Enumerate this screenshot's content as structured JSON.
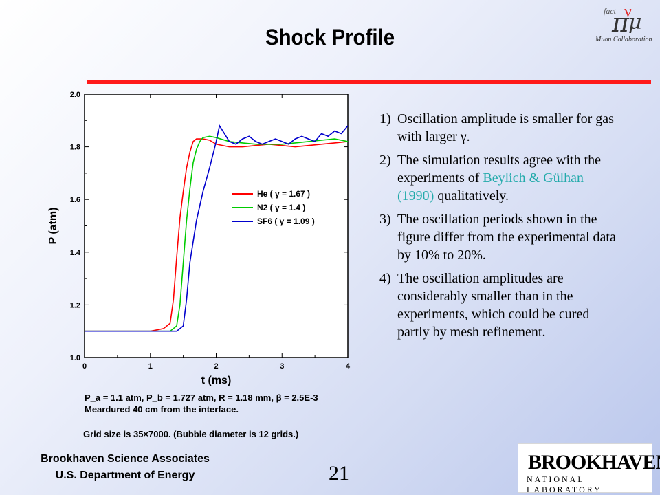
{
  "slide": {
    "title": "Shock Profile",
    "page_number": "21",
    "grid_note": "Grid size is 35×7000. (Bubble diameter is 12 grids.)",
    "footer_line1": "Brookhaven Science Associates",
    "footer_line2": "U.S. Department of Energy",
    "bnl_logo_top": "BROOKHAVEN",
    "bnl_logo_bottom": "NATIONAL LABORATORY",
    "logo_text_fact": "fact",
    "logo_text_collab": "Muon Collaboration"
  },
  "notes": [
    {
      "num": "1)",
      "text": "Oscillation amplitude is smaller for gas with larger γ."
    },
    {
      "num": "2)",
      "pre": "The simulation results agree with the experiments of ",
      "highlight": "Beylich & Gülhan (1990)",
      "post": " qualitatively."
    },
    {
      "num": "3)",
      "text": "The oscillation periods shown in the figure differ from the experimental data by 10% to 20%."
    },
    {
      "num": "4)",
      "text": "The oscillation amplitudes are considerably smaller than in the experiments, which could be cured partly by mesh refinement."
    }
  ],
  "chart_data": {
    "type": "line",
    "xlabel": "t (ms)",
    "ylabel": "P (atm)",
    "xlim": [
      0,
      4
    ],
    "ylim": [
      1.0,
      2.0
    ],
    "xticks": [
      "0",
      "1",
      "2",
      "3",
      "4"
    ],
    "yticks": [
      "1.0",
      "1.2",
      "1.4",
      "1.6",
      "1.8",
      "2.0"
    ],
    "legend_position": "right",
    "caption_line1": "P_a = 1.1 atm, P_b = 1.727 atm, R = 1.18 mm, β = 2.5E-3",
    "caption_line2": "Meardured 40 cm from the interface.",
    "series": [
      {
        "name": "He ( γ = 1.67 )",
        "color": "#ff0000",
        "x": [
          0,
          1.0,
          1.2,
          1.3,
          1.35,
          1.4,
          1.45,
          1.5,
          1.55,
          1.6,
          1.65,
          1.7,
          1.8,
          1.9,
          2.0,
          2.2,
          2.4,
          2.6,
          2.8,
          3.0,
          3.2,
          3.4,
          3.6,
          3.8,
          4.0
        ],
        "y": [
          1.1,
          1.1,
          1.11,
          1.13,
          1.22,
          1.38,
          1.53,
          1.63,
          1.72,
          1.78,
          1.82,
          1.83,
          1.83,
          1.825,
          1.81,
          1.8,
          1.8,
          1.805,
          1.81,
          1.805,
          1.8,
          1.805,
          1.81,
          1.815,
          1.82
        ]
      },
      {
        "name": "N2 ( γ = 1.4 )",
        "color": "#00cc00",
        "x": [
          0,
          1.0,
          1.3,
          1.4,
          1.45,
          1.5,
          1.55,
          1.6,
          1.65,
          1.7,
          1.75,
          1.8,
          1.9,
          2.0,
          2.2,
          2.4,
          2.6,
          2.8,
          3.0,
          3.2,
          3.4,
          3.6,
          3.8,
          4.0
        ],
        "y": [
          1.1,
          1.1,
          1.1,
          1.12,
          1.2,
          1.36,
          1.52,
          1.64,
          1.74,
          1.79,
          1.82,
          1.835,
          1.84,
          1.835,
          1.82,
          1.815,
          1.81,
          1.81,
          1.81,
          1.815,
          1.82,
          1.825,
          1.83,
          1.82
        ]
      },
      {
        "name": "SF6 ( γ = 1.09 )",
        "color": "#0000cc",
        "x": [
          0,
          1.0,
          1.3,
          1.4,
          1.5,
          1.55,
          1.6,
          1.7,
          1.8,
          1.9,
          2.0,
          2.05,
          2.1,
          2.2,
          2.3,
          2.4,
          2.5,
          2.6,
          2.7,
          2.8,
          2.9,
          3.0,
          3.1,
          3.2,
          3.3,
          3.4,
          3.5,
          3.6,
          3.7,
          3.8,
          3.9,
          4.0
        ],
        "y": [
          1.1,
          1.1,
          1.1,
          1.1,
          1.12,
          1.22,
          1.36,
          1.52,
          1.63,
          1.72,
          1.82,
          1.88,
          1.86,
          1.82,
          1.81,
          1.83,
          1.84,
          1.82,
          1.81,
          1.82,
          1.83,
          1.82,
          1.81,
          1.83,
          1.84,
          1.83,
          1.82,
          1.85,
          1.84,
          1.86,
          1.85,
          1.88
        ]
      }
    ]
  }
}
